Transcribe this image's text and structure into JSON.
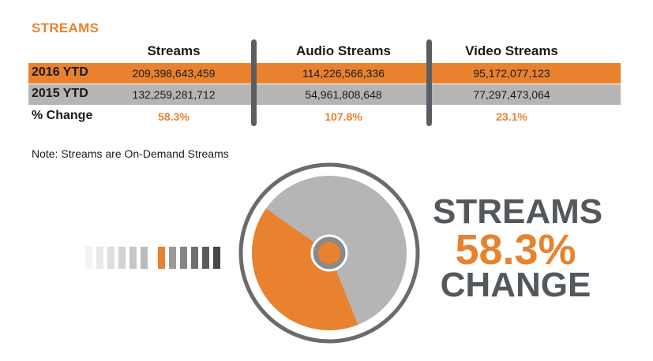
{
  "section_title": "STREAMS",
  "columns": [
    "Streams",
    "Audio Streams",
    "Video Streams"
  ],
  "rows": [
    {
      "label": "2016 YTD",
      "values": [
        "209,398,643,459",
        "114,226,566,336",
        "95,172,077,123"
      ]
    },
    {
      "label": "2015 YTD",
      "values": [
        "132,259,281,712",
        "54,961,808,648",
        "77,297,473,064"
      ]
    },
    {
      "label": "% Change",
      "values": [
        "58.3%",
        "107.8%",
        "23.1%"
      ]
    }
  ],
  "note": "Note: Streams are On-Demand Streams",
  "callout": {
    "line1": "STREAMS",
    "line2": "58.3%",
    "line3": "CHANGE"
  },
  "colors": {
    "accent": "#e8822f",
    "grey": "#b5b5b5",
    "dark": "#53585c"
  },
  "chart_data": {
    "type": "pie",
    "categories": [
      "Change",
      ""
    ],
    "values": [
      58.3,
      100
    ],
    "title": ""
  }
}
